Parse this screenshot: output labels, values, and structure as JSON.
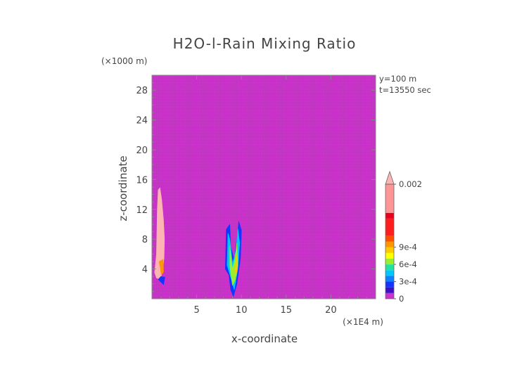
{
  "chart_data": {
    "type": "heatmap",
    "title": "H2O-l-Rain Mixing Ratio",
    "xlabel": "x-coordinate",
    "ylabel": "z-coordinate",
    "x_unit": "(×1E4 m)",
    "y_unit": "(×1000 m)",
    "info": [
      "y=100 m",
      "t=13550 sec"
    ],
    "xlim": [
      0,
      25
    ],
    "ylim": [
      0,
      30
    ],
    "x_ticks": [
      5,
      10,
      15,
      20
    ],
    "y_ticks": [
      4,
      8,
      12,
      16,
      20,
      24,
      28
    ],
    "background_value": 0,
    "background_color": "#cc33cc",
    "colorbar": {
      "vmin": 0,
      "vmax": 0.002,
      "labels": [
        {
          "value": 0,
          "text": "0"
        },
        {
          "value": 0.0003,
          "text": "3e-4"
        },
        {
          "value": 0.0006,
          "text": "6e-4"
        },
        {
          "value": 0.0009,
          "text": "9e-4"
        },
        {
          "value": 0.002,
          "text": "0.002"
        }
      ],
      "bands": [
        {
          "from": 0.0,
          "to": 0.0001,
          "color": "#cc33cc"
        },
        {
          "from": 0.0001,
          "to": 0.0002,
          "color": "#3f10c8"
        },
        {
          "from": 0.0002,
          "to": 0.0003,
          "color": "#1434ff"
        },
        {
          "from": 0.0003,
          "to": 0.0004,
          "color": "#0f82ff"
        },
        {
          "from": 0.0004,
          "to": 0.0005,
          "color": "#00c8ff"
        },
        {
          "from": 0.0005,
          "to": 0.0006,
          "color": "#20e3a0"
        },
        {
          "from": 0.0006,
          "to": 0.0007,
          "color": "#9aee30"
        },
        {
          "from": 0.0007,
          "to": 0.0008,
          "color": "#ffff00"
        },
        {
          "from": 0.0008,
          "to": 0.0009,
          "color": "#ffc800"
        },
        {
          "from": 0.0009,
          "to": 0.001,
          "color": "#ff9600"
        },
        {
          "from": 0.001,
          "to": 0.0011,
          "color": "#ff5000"
        },
        {
          "from": 0.0011,
          "to": 0.0014,
          "color": "#ff1e1e"
        },
        {
          "from": 0.0014,
          "to": 0.0015,
          "color": "#e8001e"
        },
        {
          "from": 0.0015,
          "to": 0.002,
          "color": "#ff9696"
        }
      ],
      "over_color": "#ffb4b4"
    },
    "regions": [
      {
        "name": "left-plume-core",
        "color": "#ffb4b4",
        "value": 0.002,
        "outline": [
          [
            0.3,
            3.5
          ],
          [
            0.5,
            6
          ],
          [
            0.55,
            9
          ],
          [
            0.6,
            12
          ],
          [
            0.7,
            14.6
          ],
          [
            0.9,
            14.9
          ],
          [
            1.1,
            13.2
          ],
          [
            1.3,
            10.5
          ],
          [
            1.4,
            8
          ],
          [
            1.35,
            5.5
          ],
          [
            1.2,
            3.6
          ],
          [
            0.9,
            2.6
          ],
          [
            0.5,
            2.8
          ]
        ]
      },
      {
        "name": "left-plume-edge",
        "color": "#ff9600",
        "value": 0.00095,
        "outline": [
          [
            0.8,
            5.0
          ],
          [
            1.05,
            3.2
          ],
          [
            1.3,
            3.6
          ],
          [
            1.25,
            5.3
          ]
        ]
      },
      {
        "name": "left-plume-base",
        "color": "#1434ff",
        "value": 0.00025,
        "outline": [
          [
            0.7,
            2.6
          ],
          [
            1.3,
            1.9
          ],
          [
            1.45,
            2.9
          ],
          [
            1.0,
            3.0
          ]
        ]
      },
      {
        "name": "right-plume-outer",
        "color": "#1434ff",
        "value": 0.00025,
        "outline": [
          [
            8.2,
            4.0
          ],
          [
            8.3,
            9.3
          ],
          [
            8.7,
            10.0
          ],
          [
            8.8,
            7.0
          ],
          [
            9.2,
            5.2
          ],
          [
            9.5,
            8.0
          ],
          [
            9.7,
            10.4
          ],
          [
            10.0,
            9.2
          ],
          [
            9.9,
            5.5
          ],
          [
            9.5,
            2.0
          ],
          [
            9.1,
            0.3
          ],
          [
            8.8,
            1.2
          ],
          [
            8.6,
            3.2
          ]
        ]
      },
      {
        "name": "right-plume-mid",
        "color": "#00c8ff",
        "value": 0.00045,
        "outline": [
          [
            8.4,
            4.5
          ],
          [
            8.5,
            8.8
          ],
          [
            8.7,
            8.0
          ],
          [
            9.0,
            4.8
          ],
          [
            9.4,
            6.5
          ],
          [
            9.6,
            9.4
          ],
          [
            9.8,
            7.5
          ],
          [
            9.6,
            4.0
          ],
          [
            9.2,
            1.2
          ],
          [
            8.9,
            2.5
          ]
        ]
      },
      {
        "name": "right-plume-inner",
        "color": "#9aee30",
        "value": 0.00065,
        "outline": [
          [
            8.7,
            4.3
          ],
          [
            8.7,
            7.0
          ],
          [
            9.0,
            4.0
          ],
          [
            9.3,
            5.5
          ],
          [
            9.5,
            7.5
          ],
          [
            9.6,
            5.0
          ],
          [
            9.3,
            2.5
          ],
          [
            9.0,
            1.8
          ]
        ]
      },
      {
        "name": "right-plume-core",
        "color": "#ffc800",
        "value": 0.00085,
        "outline": [
          [
            9.3,
            3.8
          ],
          [
            9.5,
            6.0
          ],
          [
            9.6,
            4.5
          ],
          [
            9.4,
            3.0
          ]
        ]
      }
    ]
  }
}
